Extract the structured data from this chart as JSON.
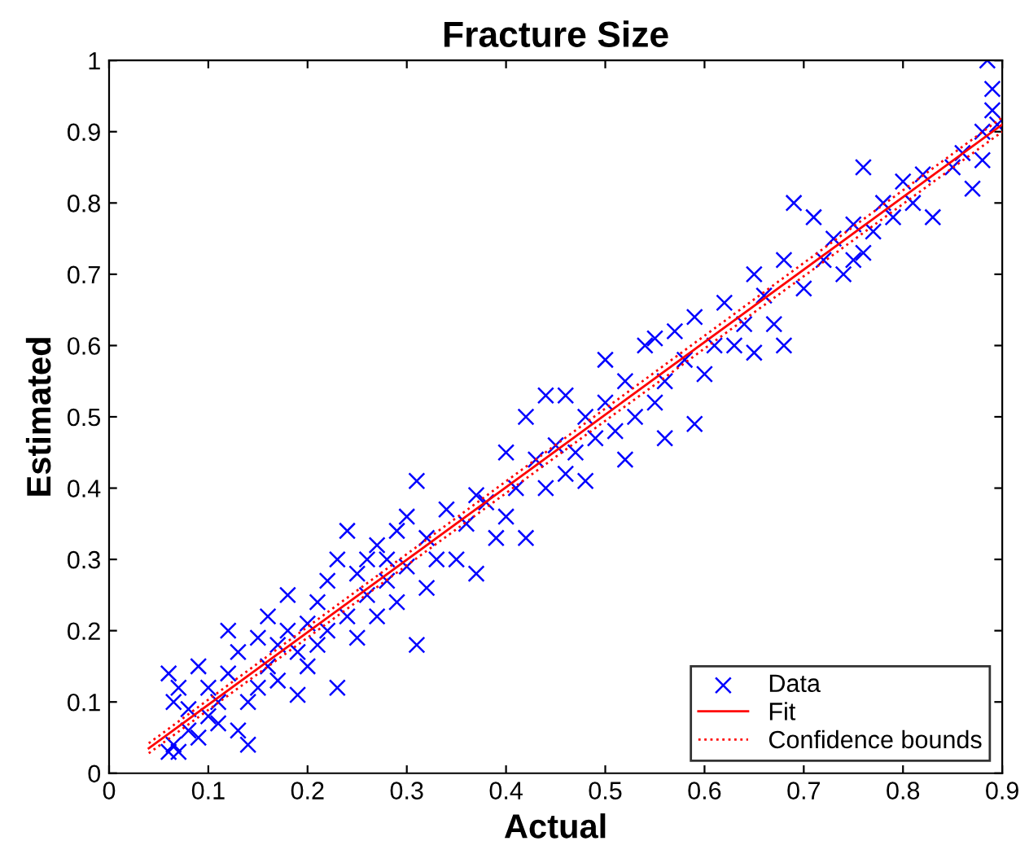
{
  "chart_data": {
    "type": "scatter",
    "title": "Fracture Size",
    "xlabel": "Actual",
    "ylabel": "Estimated",
    "xlim": [
      0,
      0.9
    ],
    "ylim": [
      0,
      1
    ],
    "xticks": [
      0,
      0.1,
      0.2,
      0.3,
      0.4,
      0.5,
      0.6,
      0.7,
      0.8,
      0.9
    ],
    "yticks": [
      0,
      0.1,
      0.2,
      0.3,
      0.4,
      0.5,
      0.6,
      0.7,
      0.8,
      0.9,
      1
    ],
    "grid": false,
    "legend": "bottom right",
    "series": [
      {
        "name": "Data",
        "color": "#0000ff",
        "marker": "cross",
        "x": [
          0.06,
          0.065,
          0.07,
          0.06,
          0.07,
          0.065,
          0.08,
          0.08,
          0.09,
          0.09,
          0.1,
          0.1,
          0.11,
          0.11,
          0.12,
          0.12,
          0.13,
          0.13,
          0.14,
          0.14,
          0.15,
          0.15,
          0.16,
          0.16,
          0.17,
          0.17,
          0.18,
          0.18,
          0.19,
          0.19,
          0.2,
          0.2,
          0.21,
          0.21,
          0.22,
          0.22,
          0.23,
          0.23,
          0.24,
          0.24,
          0.25,
          0.25,
          0.26,
          0.26,
          0.27,
          0.27,
          0.28,
          0.28,
          0.29,
          0.29,
          0.3,
          0.3,
          0.31,
          0.31,
          0.32,
          0.32,
          0.33,
          0.34,
          0.35,
          0.36,
          0.37,
          0.37,
          0.38,
          0.39,
          0.4,
          0.4,
          0.41,
          0.42,
          0.42,
          0.43,
          0.44,
          0.44,
          0.45,
          0.46,
          0.46,
          0.47,
          0.48,
          0.48,
          0.49,
          0.5,
          0.5,
          0.51,
          0.52,
          0.52,
          0.53,
          0.54,
          0.55,
          0.55,
          0.56,
          0.56,
          0.57,
          0.58,
          0.59,
          0.59,
          0.6,
          0.61,
          0.62,
          0.63,
          0.64,
          0.65,
          0.65,
          0.66,
          0.67,
          0.68,
          0.68,
          0.69,
          0.7,
          0.71,
          0.72,
          0.73,
          0.74,
          0.75,
          0.75,
          0.76,
          0.76,
          0.77,
          0.78,
          0.79,
          0.8,
          0.81,
          0.82,
          0.83,
          0.85,
          0.86,
          0.87,
          0.88,
          0.885,
          0.89,
          0.89,
          0.895,
          0.88
        ],
        "values": [
          0.03,
          0.04,
          0.03,
          0.14,
          0.12,
          0.1,
          0.06,
          0.09,
          0.05,
          0.15,
          0.08,
          0.12,
          0.1,
          0.07,
          0.2,
          0.14,
          0.06,
          0.17,
          0.1,
          0.04,
          0.12,
          0.19,
          0.15,
          0.22,
          0.18,
          0.13,
          0.2,
          0.25,
          0.17,
          0.11,
          0.21,
          0.15,
          0.18,
          0.24,
          0.27,
          0.2,
          0.12,
          0.3,
          0.22,
          0.34,
          0.28,
          0.19,
          0.3,
          0.25,
          0.32,
          0.22,
          0.3,
          0.27,
          0.34,
          0.24,
          0.36,
          0.29,
          0.41,
          0.18,
          0.26,
          0.33,
          0.3,
          0.37,
          0.3,
          0.35,
          0.39,
          0.28,
          0.38,
          0.33,
          0.45,
          0.36,
          0.4,
          0.5,
          0.33,
          0.44,
          0.4,
          0.53,
          0.46,
          0.53,
          0.42,
          0.45,
          0.5,
          0.41,
          0.47,
          0.52,
          0.58,
          0.48,
          0.55,
          0.44,
          0.5,
          0.6,
          0.52,
          0.61,
          0.55,
          0.47,
          0.62,
          0.58,
          0.49,
          0.64,
          0.56,
          0.6,
          0.66,
          0.6,
          0.63,
          0.7,
          0.59,
          0.67,
          0.63,
          0.6,
          0.72,
          0.8,
          0.68,
          0.78,
          0.72,
          0.75,
          0.7,
          0.77,
          0.72,
          0.73,
          0.85,
          0.76,
          0.8,
          0.78,
          0.83,
          0.8,
          0.84,
          0.78,
          0.85,
          0.87,
          0.82,
          0.9,
          1.0,
          0.96,
          0.93,
          0.91,
          0.86
        ]
      },
      {
        "name": "Fit",
        "type": "line",
        "color": "#ff0000",
        "line_style": "solid",
        "x": [
          0.04,
          0.9
        ],
        "values": [
          0.035,
          0.91
        ]
      },
      {
        "name": "Confidence bounds",
        "type": "line",
        "color": "#ff0000",
        "line_style": "dotted",
        "x": [
          0.04,
          0.9
        ],
        "values": [
          0.042,
          0.92
        ]
      },
      {
        "type": "line",
        "color": "#ff0000",
        "line_style": "dotted",
        "x": [
          0.04,
          0.9
        ],
        "values": [
          0.028,
          0.9
        ]
      }
    ]
  }
}
